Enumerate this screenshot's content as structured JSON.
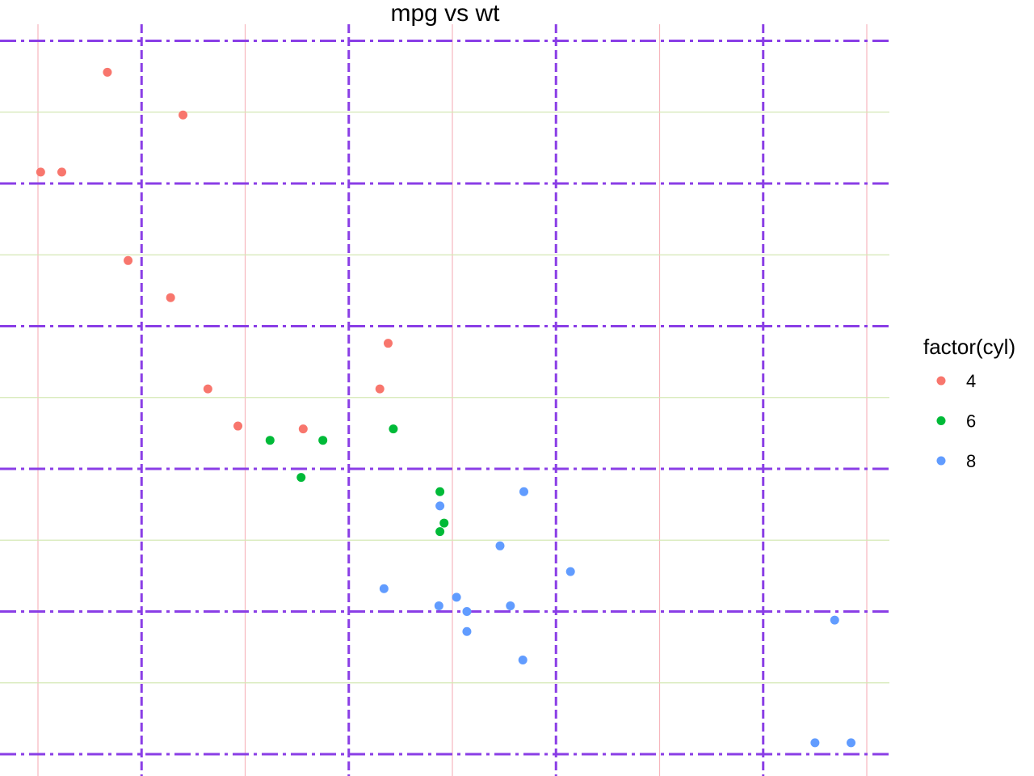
{
  "chart_data": {
    "type": "scatter",
    "title": "mpg vs wt",
    "xlabel": "",
    "ylabel": "",
    "xlim": [
      1.4,
      5.6
    ],
    "ylim": [
      10,
      35
    ],
    "x_major_ticks": [
      1.5,
      2.5,
      3.5,
      4.5,
      5.5
    ],
    "x_minor_ticks": [
      2,
      3,
      4,
      5
    ],
    "y_major_ticks": [
      10,
      15,
      20,
      25,
      30
    ],
    "y_minor_ticks": [
      12.5,
      17.5,
      22.5,
      27.5,
      32.5
    ],
    "grid": true,
    "tick_labels_visible": false,
    "legend": {
      "title": "factor(cyl)",
      "position": "right"
    },
    "series": [
      {
        "name": "4",
        "color": "#F8766D",
        "points": [
          [
            2.32,
            22.8
          ],
          [
            3.19,
            24.4
          ],
          [
            3.15,
            22.8
          ],
          [
            2.2,
            32.4
          ],
          [
            1.615,
            30.4
          ],
          [
            1.835,
            33.9
          ],
          [
            2.465,
            21.5
          ],
          [
            1.935,
            27.3
          ],
          [
            2.14,
            26.0
          ],
          [
            1.513,
            30.4
          ],
          [
            2.78,
            21.4
          ]
        ]
      },
      {
        "name": "6",
        "color": "#00BA38",
        "points": [
          [
            2.62,
            21.0
          ],
          [
            2.875,
            21.0
          ],
          [
            3.215,
            21.4
          ],
          [
            3.46,
            18.1
          ],
          [
            3.44,
            19.2
          ],
          [
            3.44,
            17.8
          ],
          [
            2.77,
            19.7
          ]
        ]
      },
      {
        "name": "8",
        "color": "#619CFF",
        "points": [
          [
            3.44,
            18.7
          ],
          [
            3.57,
            14.3
          ],
          [
            4.07,
            16.4
          ],
          [
            3.73,
            17.3
          ],
          [
            3.78,
            15.2
          ],
          [
            5.25,
            10.4
          ],
          [
            5.424,
            10.4
          ],
          [
            5.345,
            14.7
          ],
          [
            3.52,
            15.5
          ],
          [
            3.435,
            15.2
          ],
          [
            3.84,
            13.3
          ],
          [
            3.845,
            19.2
          ],
          [
            3.17,
            15.8
          ],
          [
            3.57,
            15.0
          ]
        ]
      }
    ]
  }
}
